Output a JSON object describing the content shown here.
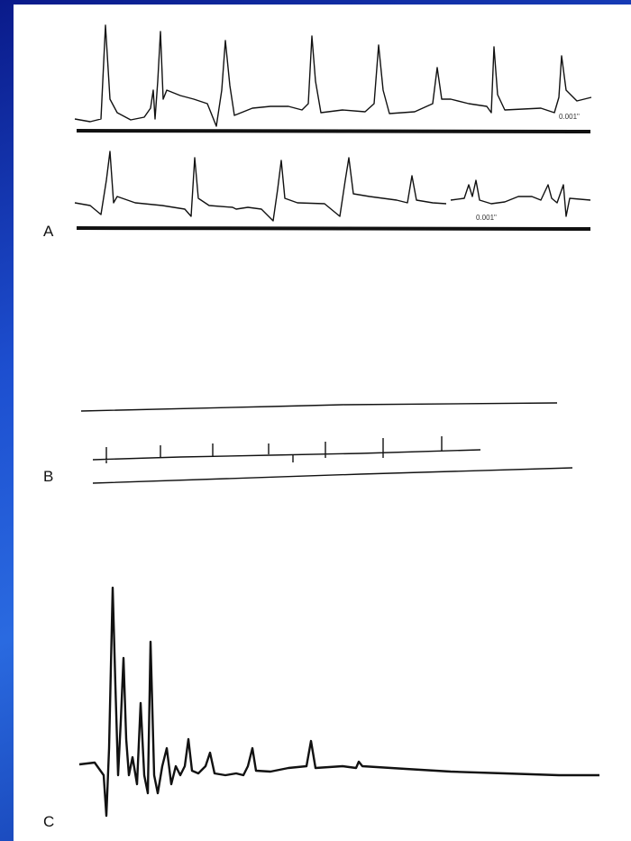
{
  "labels": {
    "panel_a": "A",
    "panel_b": "B",
    "panel_c": "C"
  },
  "annotations": [
    "0.001\"",
    "0.001\""
  ]
}
